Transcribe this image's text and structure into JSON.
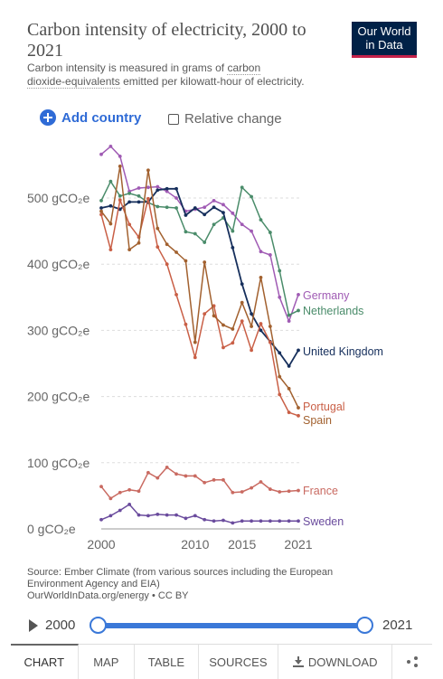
{
  "header": {
    "title": "Carbon intensity of electricity, 2000 to 2021",
    "subtitle_pre": "Carbon intensity is measured in grams of ",
    "subtitle_u1": "carbon",
    "subtitle_u2": "dioxide-equivalents",
    "subtitle_post": " emitted per kilowatt-hour of electricity.",
    "logo_line1": "Our World",
    "logo_line2": "in Data"
  },
  "controls": {
    "add_country": "Add country",
    "relative_change": "Relative change"
  },
  "chart_data": {
    "type": "line",
    "x": [
      2000,
      2001,
      2002,
      2003,
      2004,
      2005,
      2006,
      2007,
      2008,
      2009,
      2010,
      2011,
      2012,
      2013,
      2014,
      2015,
      2016,
      2017,
      2018,
      2019,
      2020,
      2021
    ],
    "xlim": [
      1998,
      2022
    ],
    "ylim": [
      0,
      600
    ],
    "yticks": [
      0,
      100,
      200,
      300,
      400,
      500
    ],
    "ytick_labels": [
      "0 gCO₂e",
      "100 gCO₂e",
      "200 gCO₂e",
      "300 gCO₂e",
      "400 gCO₂e",
      "500 gCO₂e"
    ],
    "xticks": [
      2000,
      2010,
      2015,
      2021
    ],
    "xtick_labels": [
      "2000",
      "2010",
      "2015",
      "2021"
    ],
    "grid": "horizontal-dashed",
    "legend": "right, inline labels",
    "series": [
      {
        "name": "Germany",
        "color": "#a05bb4",
        "values": [
          566,
          578,
          563,
          510,
          515,
          516,
          517,
          510,
          500,
          480,
          483,
          486,
          496,
          490,
          477,
          460,
          450,
          419,
          414,
          350,
          314,
          354
        ]
      },
      {
        "name": "Netherlands",
        "color": "#4a8c6a",
        "values": [
          496,
          525,
          503,
          507,
          503,
          493,
          487,
          486,
          485,
          449,
          446,
          433,
          460,
          470,
          450,
          516,
          502,
          467,
          448,
          390,
          323,
          330
        ]
      },
      {
        "name": "United Kingdom",
        "color": "#162f5c",
        "values": [
          485,
          488,
          483,
          494,
          494,
          494,
          512,
          514,
          514,
          474,
          485,
          475,
          486,
          478,
          425,
          370,
          325,
          300,
          283,
          266,
          246,
          270
        ]
      },
      {
        "name": "Portugal",
        "color": "#c95f46",
        "values": [
          475,
          422,
          497,
          460,
          441,
          499,
          426,
          400,
          354,
          309,
          259,
          325,
          337,
          274,
          281,
          314,
          270,
          310,
          282,
          203,
          176,
          171
        ]
      },
      {
        "name": "Spain",
        "color": "#a2612f",
        "values": [
          480,
          461,
          548,
          422,
          432,
          542,
          454,
          430,
          418,
          405,
          282,
          403,
          322,
          308,
          302,
          342,
          306,
          380,
          306,
          230,
          212,
          183
        ]
      },
      {
        "name": "France",
        "color": "#c96a61",
        "values": [
          64,
          46,
          55,
          59,
          57,
          85,
          77,
          93,
          83,
          80,
          80,
          70,
          74,
          74,
          55,
          56,
          62,
          71,
          60,
          56,
          57,
          58
        ]
      },
      {
        "name": "Sweden",
        "color": "#6a4b9d",
        "values": [
          14,
          20,
          28,
          37,
          21,
          20,
          22,
          21,
          21,
          16,
          20,
          14,
          12,
          13,
          9,
          12,
          12,
          12,
          12,
          12,
          12,
          12
        ]
      }
    ]
  },
  "source": {
    "line1": "Source: Ember Climate (from various sources including the European",
    "line2": "Environment Agency and EIA)",
    "line3": "OurWorldInData.org/energy • CC BY"
  },
  "timeline": {
    "start": "2000",
    "end": "2021"
  },
  "tabs": {
    "chart": "CHART",
    "map": "MAP",
    "table": "TABLE",
    "sources": "SOURCES",
    "download": "DOWNLOAD"
  }
}
